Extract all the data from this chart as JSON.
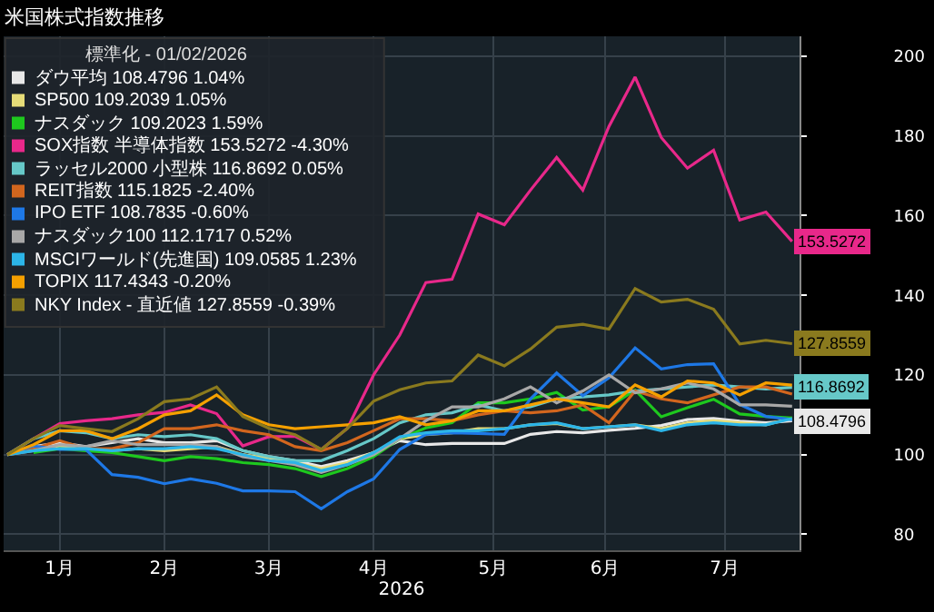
{
  "chart_data": {
    "type": "line",
    "title": "米国株式指数推移",
    "xlabel": "2026",
    "legend_title": "標準化 - 01/02/2026",
    "x": [
      "2026-01-02",
      "2026-01-09",
      "2026-01-16",
      "2026-01-23",
      "2026-01-30",
      "2026-02-06",
      "2026-02-13",
      "2026-02-20",
      "2026-02-27",
      "2026-03-06",
      "2026-03-13",
      "2026-03-20",
      "2026-03-27",
      "2026-04-03",
      "2026-04-10",
      "2026-04-17",
      "2026-04-24",
      "2026-05-01",
      "2026-05-08",
      "2026-05-15",
      "2026-05-22",
      "2026-05-29",
      "2026-06-05",
      "2026-06-12",
      "2026-06-19",
      "2026-06-26",
      "2026-07-03",
      "2026-07-10",
      "2026-07-17",
      "2026-07-24",
      "2026-07-31"
    ],
    "series": [
      {
        "name": "ダウ平均 108.4796 1.04%",
        "color": "#e8e8e8",
        "values": [
          100,
          102,
          103,
          102,
          103,
          104,
          103,
          103,
          103.5,
          101,
          99.5,
          98.5,
          97,
          98.5,
          100.5,
          103.5,
          102.5,
          102.8,
          102.8,
          102.8,
          105.1,
          105.8,
          105.5,
          106.1,
          106.6,
          107.3,
          108.8,
          109.1,
          108.4,
          108,
          108.4796
        ]
      },
      {
        "name": "SP500 109.2039 1.05%",
        "color": "#e6dc78",
        "values": [
          100,
          101.5,
          102,
          101.5,
          101,
          101.5,
          101,
          101.5,
          102,
          100,
          99,
          98,
          96.5,
          98,
          100.5,
          104,
          105,
          105.5,
          106.5,
          106.5,
          107.5,
          107.8,
          106.5,
          107,
          107.5,
          106.5,
          108,
          108.5,
          108,
          107.5,
          109.2039
        ]
      },
      {
        "name": "ナスダック 109.2023 1.59%",
        "color": "#1ec81e",
        "values": [
          null,
          100.5,
          101.5,
          101,
          100.5,
          99.5,
          98.5,
          99.5,
          99,
          98,
          97.5,
          96.5,
          94.5,
          96.5,
          99.5,
          104,
          106.7,
          108,
          113,
          113,
          114,
          115.6,
          111.2,
          112,
          116.2,
          109.5,
          111.8,
          113.9,
          110.2,
          109.6,
          109.2023
        ]
      },
      {
        "name": "SOX指数 半導体指数 153.5272 -4.30%",
        "color": "#e8288a",
        "values": [
          100,
          104,
          107.8,
          108.5,
          109,
          110,
          110.6,
          112.5,
          110.3,
          102.2,
          104.5,
          104.6,
          101.3,
          106.6,
          120,
          130,
          143.2,
          144,
          160.4,
          157.7,
          166.4,
          174.6,
          166.4,
          182.4,
          194.8,
          179.6,
          171.9,
          176.4,
          158.9,
          160.9,
          153.5272
        ]
      },
      {
        "name": "ラッセル2000 小型株 116.8692 0.05%",
        "color": "#66c8c8",
        "values": [
          100,
          104,
          106,
          105.5,
          104,
          105,
          104.5,
          105,
          104,
          101,
          99.5,
          98.5,
          98.5,
          101,
          104,
          108,
          110,
          110.5,
          112.5,
          111,
          112,
          114,
          114.5,
          115,
          116,
          116.5,
          117,
          117.5,
          117,
          116.5,
          116.8692
        ]
      },
      {
        "name": "REIT指数 115.1825 -2.40%",
        "color": "#d2661e",
        "values": [
          100,
          101.5,
          103.5,
          101.5,
          101.5,
          103,
          106.5,
          106.5,
          107.5,
          106,
          105,
          102,
          101,
          103,
          106,
          109,
          109,
          108.5,
          110,
          111,
          110.5,
          111,
          112.5,
          108,
          116,
          114,
          113,
          115,
          117,
          117,
          115.1825
        ]
      },
      {
        "name": "IPO ETF 108.7835 -0.60%",
        "color": "#1e78e6",
        "values": [
          100,
          102.2,
          101.3,
          101.3,
          95,
          94.3,
          92.7,
          93.9,
          92.8,
          90.9,
          90.9,
          90.7,
          86.4,
          90.7,
          93.9,
          101.3,
          105.1,
          105.5,
          105.3,
          105.1,
          114,
          120.5,
          114.8,
          119.3,
          126.8,
          121.5,
          122.6,
          122.8,
          112.6,
          109.6,
          108.7835
        ]
      },
      {
        "name": "ナスダック100 112.1717 0.52%",
        "color": "#a8a8a8",
        "values": [
          100,
          101,
          102.5,
          102,
          103.5,
          102.5,
          102.5,
          102.5,
          102,
          99.5,
          98.5,
          97.5,
          95.5,
          97.5,
          100,
          104,
          108.5,
          112,
          112,
          114,
          117,
          113,
          116,
          120,
          115.5,
          116.5,
          118,
          116.5,
          112.5,
          112.5,
          112.1717
        ]
      },
      {
        "name": "MSCIワールド(先進国) 109.0585 1.23%",
        "color": "#2cb5e8",
        "values": [
          100,
          101,
          101.5,
          101.5,
          101,
          101.5,
          101.5,
          102,
          101.5,
          100,
          98.5,
          98,
          96,
          97.5,
          100.5,
          104.5,
          105.5,
          106,
          106,
          106.5,
          107.5,
          108,
          106.5,
          107,
          107.5,
          106,
          107.5,
          108,
          107.5,
          107.5,
          109.0585
        ]
      },
      {
        "name": "TOPIX 117.4343 -0.20%",
        "color": "#f5a000",
        "values": [
          100,
          102.5,
          106,
          106,
          104,
          106.5,
          110,
          111,
          115,
          110,
          107.5,
          106.5,
          107,
          107.5,
          108,
          109.5,
          107.5,
          108.5,
          111,
          111,
          112.5,
          114,
          113,
          112,
          117.5,
          114.5,
          118.5,
          118,
          115,
          118,
          117.4343
        ]
      },
      {
        "name": "NKY Index - 直近値 127.8559 -0.39%",
        "color": "#8a7a1e",
        "values": [
          100,
          104,
          107.3,
          106.5,
          105.8,
          109,
          113.3,
          114,
          117,
          109.6,
          106.6,
          105,
          101.3,
          106.6,
          113.4,
          116.3,
          118,
          118.5,
          125,
          122.3,
          126.5,
          132,
          132.7,
          131.5,
          141.7,
          138.3,
          139,
          136.5,
          127.8,
          128.7,
          127.8559
        ]
      }
    ],
    "annotations": [
      {
        "text": "153.5272",
        "x": "2026-07-31",
        "y": 153.5272
      },
      {
        "text": "127.8559",
        "x": "2026-07-31",
        "y": 127.8559
      },
      {
        "text": "116.8692",
        "x": "2026-07-31",
        "y": 116.8692
      },
      {
        "text": "108.4796",
        "x": "2026-07-31",
        "y": 108.4796
      }
    ],
    "xlim": [
      "2026-01-01",
      "2026-08-02"
    ],
    "xticks": [
      {
        "value": "2026-01-16",
        "label": "1月"
      },
      {
        "value": "2026-02-13",
        "label": "2月"
      },
      {
        "value": "2026-03-13",
        "label": "3月"
      },
      {
        "value": "2026-04-10",
        "label": "4月"
      },
      {
        "value": "2026-05-12",
        "label": "5月"
      },
      {
        "value": "2026-06-11",
        "label": "6月"
      },
      {
        "value": "2026-07-13",
        "label": "7月"
      }
    ],
    "ylim": [
      76,
      205
    ],
    "yticks": [
      80,
      100,
      120,
      140,
      160,
      180,
      200
    ],
    "grid": true,
    "legend": "top left",
    "marker": "none",
    "line_style": "solid"
  }
}
